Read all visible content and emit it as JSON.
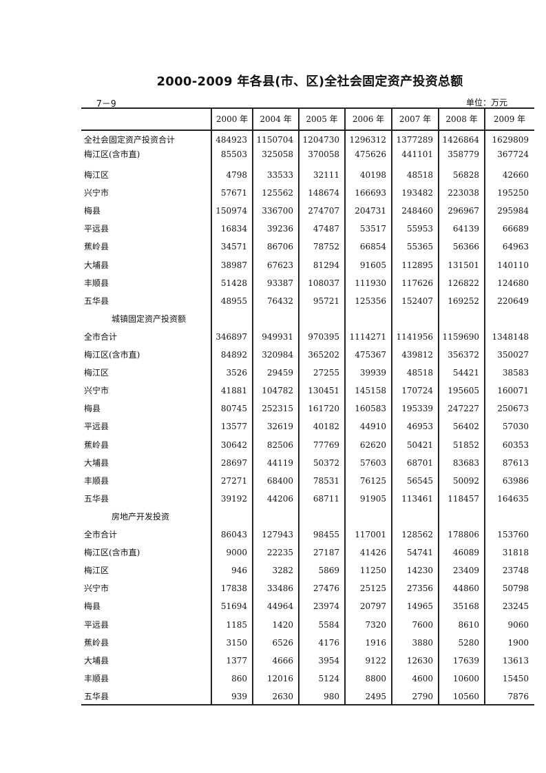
{
  "title": "2000-2009 年各县(市、区)全社会固定资产投资总额",
  "table_code": "7－9",
  "unit": "单位：万元",
  "columns": [
    "2000 年",
    "2004 年",
    "2005 年",
    "2006 年",
    "2007 年",
    "2008 年",
    "2009 年"
  ],
  "rows": [
    {
      "label": "全社会固定资产投资合计",
      "values": [
        "484923",
        "1150704",
        "1204730",
        "1296312",
        "1377289",
        "1426864",
        "1629809"
      ]
    },
    {
      "label": "梅江区(含市直)",
      "values": [
        "85503",
        "325058",
        "370058",
        "475626",
        "441101",
        "358779",
        "367724"
      ]
    },
    {
      "label": "梅江区",
      "values": [
        "4798",
        "33533",
        "32111",
        "40198",
        "48518",
        "56828",
        "42660"
      ]
    },
    {
      "label": "兴宁市",
      "values": [
        "57671",
        "125562",
        "148674",
        "166693",
        "193482",
        "223038",
        "195250"
      ]
    },
    {
      "label": "梅县",
      "values": [
        "150974",
        "336700",
        "274707",
        "204731",
        "248460",
        "296967",
        "295984"
      ]
    },
    {
      "label": "平远县",
      "values": [
        "16834",
        "39236",
        "47487",
        "53517",
        "55953",
        "64139",
        "66689"
      ]
    },
    {
      "label": "蕉岭县",
      "values": [
        "34571",
        "86706",
        "78752",
        "66854",
        "55365",
        "56366",
        "64963"
      ]
    },
    {
      "label": "大埔县",
      "values": [
        "38987",
        "67623",
        "81294",
        "91605",
        "112895",
        "131501",
        "140110"
      ]
    },
    {
      "label": "丰顺县",
      "values": [
        "51428",
        "93387",
        "108037",
        "111930",
        "117626",
        "126822",
        "124680"
      ]
    },
    {
      "label": "五华县",
      "values": [
        "48955",
        "76432",
        "95721",
        "125356",
        "152407",
        "169252",
        "220649"
      ]
    },
    {
      "label": "城镇固定资产投资额",
      "section": true,
      "values": []
    },
    {
      "label": "全市合计",
      "values": [
        "346897",
        "949931",
        "970395",
        "1114271",
        "1141956",
        "1159690",
        "1348148"
      ]
    },
    {
      "label": "梅江区(含市直)",
      "values": [
        "84892",
        "320984",
        "365202",
        "475367",
        "439812",
        "356372",
        "350027"
      ]
    },
    {
      "label": "梅江区",
      "values": [
        "3526",
        "29459",
        "27255",
        "39939",
        "48518",
        "54421",
        "38583"
      ]
    },
    {
      "label": "兴宁市",
      "values": [
        "41881",
        "104782",
        "130451",
        "145158",
        "170724",
        "195605",
        "160071"
      ]
    },
    {
      "label": "梅县",
      "values": [
        "80745",
        "252315",
        "161720",
        "160583",
        "195339",
        "247227",
        "250673"
      ]
    },
    {
      "label": "平远县",
      "values": [
        "13577",
        "32619",
        "40182",
        "44910",
        "46953",
        "56402",
        "57030"
      ]
    },
    {
      "label": "蕉岭县",
      "values": [
        "30642",
        "82506",
        "77769",
        "62620",
        "50421",
        "51852",
        "60353"
      ]
    },
    {
      "label": "大埔县",
      "values": [
        "28697",
        "44119",
        "50372",
        "57603",
        "68701",
        "83683",
        "87613"
      ]
    },
    {
      "label": "丰顺县",
      "values": [
        "27271",
        "68400",
        "78531",
        "76125",
        "56545",
        "50092",
        "63986"
      ]
    },
    {
      "label": "五华县",
      "values": [
        "39192",
        "44206",
        "68711",
        "91905",
        "113461",
        "118457",
        "164635"
      ]
    },
    {
      "label": "房地产开发投资",
      "section": true,
      "values": []
    },
    {
      "label": "全市合计",
      "values": [
        "86043",
        "127943",
        "98455",
        "117001",
        "128562",
        "178806",
        "153760"
      ]
    },
    {
      "label": "梅江区(含市直)",
      "values": [
        "9000",
        "22235",
        "27187",
        "41426",
        "54741",
        "46089",
        "31818"
      ]
    },
    {
      "label": "梅江区",
      "values": [
        "946",
        "3282",
        "5869",
        "11250",
        "14230",
        "23409",
        "23748"
      ]
    },
    {
      "label": "兴宁市",
      "values": [
        "17838",
        "33486",
        "27476",
        "25125",
        "27356",
        "44860",
        "50798"
      ]
    },
    {
      "label": "梅县",
      "values": [
        "51694",
        "44964",
        "23974",
        "20797",
        "14965",
        "35168",
        "23245"
      ]
    },
    {
      "label": "平远县",
      "values": [
        "1185",
        "1420",
        "5584",
        "7320",
        "7600",
        "8610",
        "9060"
      ]
    },
    {
      "label": "蕉岭县",
      "values": [
        "3150",
        "6526",
        "4176",
        "1916",
        "3880",
        "5280",
        "1900"
      ]
    },
    {
      "label": "大埔县",
      "values": [
        "1377",
        "4666",
        "3954",
        "9122",
        "12630",
        "17639",
        "13613"
      ]
    },
    {
      "label": "丰顺县",
      "values": [
        "860",
        "12016",
        "5124",
        "8800",
        "4600",
        "10600",
        "15450"
      ]
    },
    {
      "label": "五华县",
      "values": [
        "939",
        "2630",
        "980",
        "2495",
        "2790",
        "10560",
        "7876"
      ]
    }
  ]
}
